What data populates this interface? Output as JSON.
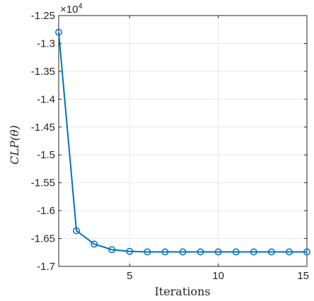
{
  "chart_data": {
    "type": "line",
    "xlabel": "Iterations",
    "ylabel": "CLP(θ)",
    "y_multiplier": "×10",
    "y_multiplier_exp": "4",
    "xlim": [
      1,
      15
    ],
    "ylim": [
      -1.7,
      -1.25
    ],
    "x_ticks": [
      5,
      10,
      15
    ],
    "x_tick_labels": [
      "5",
      "10",
      "15"
    ],
    "y_ticks": [
      -1.25,
      -1.3,
      -1.35,
      -1.4,
      -1.45,
      -1.5,
      -1.55,
      -1.6,
      -1.65,
      -1.7
    ],
    "y_tick_labels": [
      "-1.25",
      "-1.3",
      "-1.35",
      "-1.4",
      "-1.45",
      "-1.5",
      "-1.55",
      "-1.6",
      "-1.65",
      "-1.7"
    ],
    "grid": true,
    "series": [
      {
        "color": "#0072BD",
        "marker": "circle",
        "x": [
          1,
          2,
          3,
          4,
          5,
          6,
          7,
          8,
          9,
          10,
          11,
          12,
          13,
          14,
          15
        ],
        "y": [
          -1.28,
          -1.636,
          -1.66,
          -1.67,
          -1.673,
          -1.674,
          -1.674,
          -1.674,
          -1.674,
          -1.674,
          -1.674,
          -1.674,
          -1.674,
          -1.674,
          -1.674
        ]
      }
    ]
  }
}
